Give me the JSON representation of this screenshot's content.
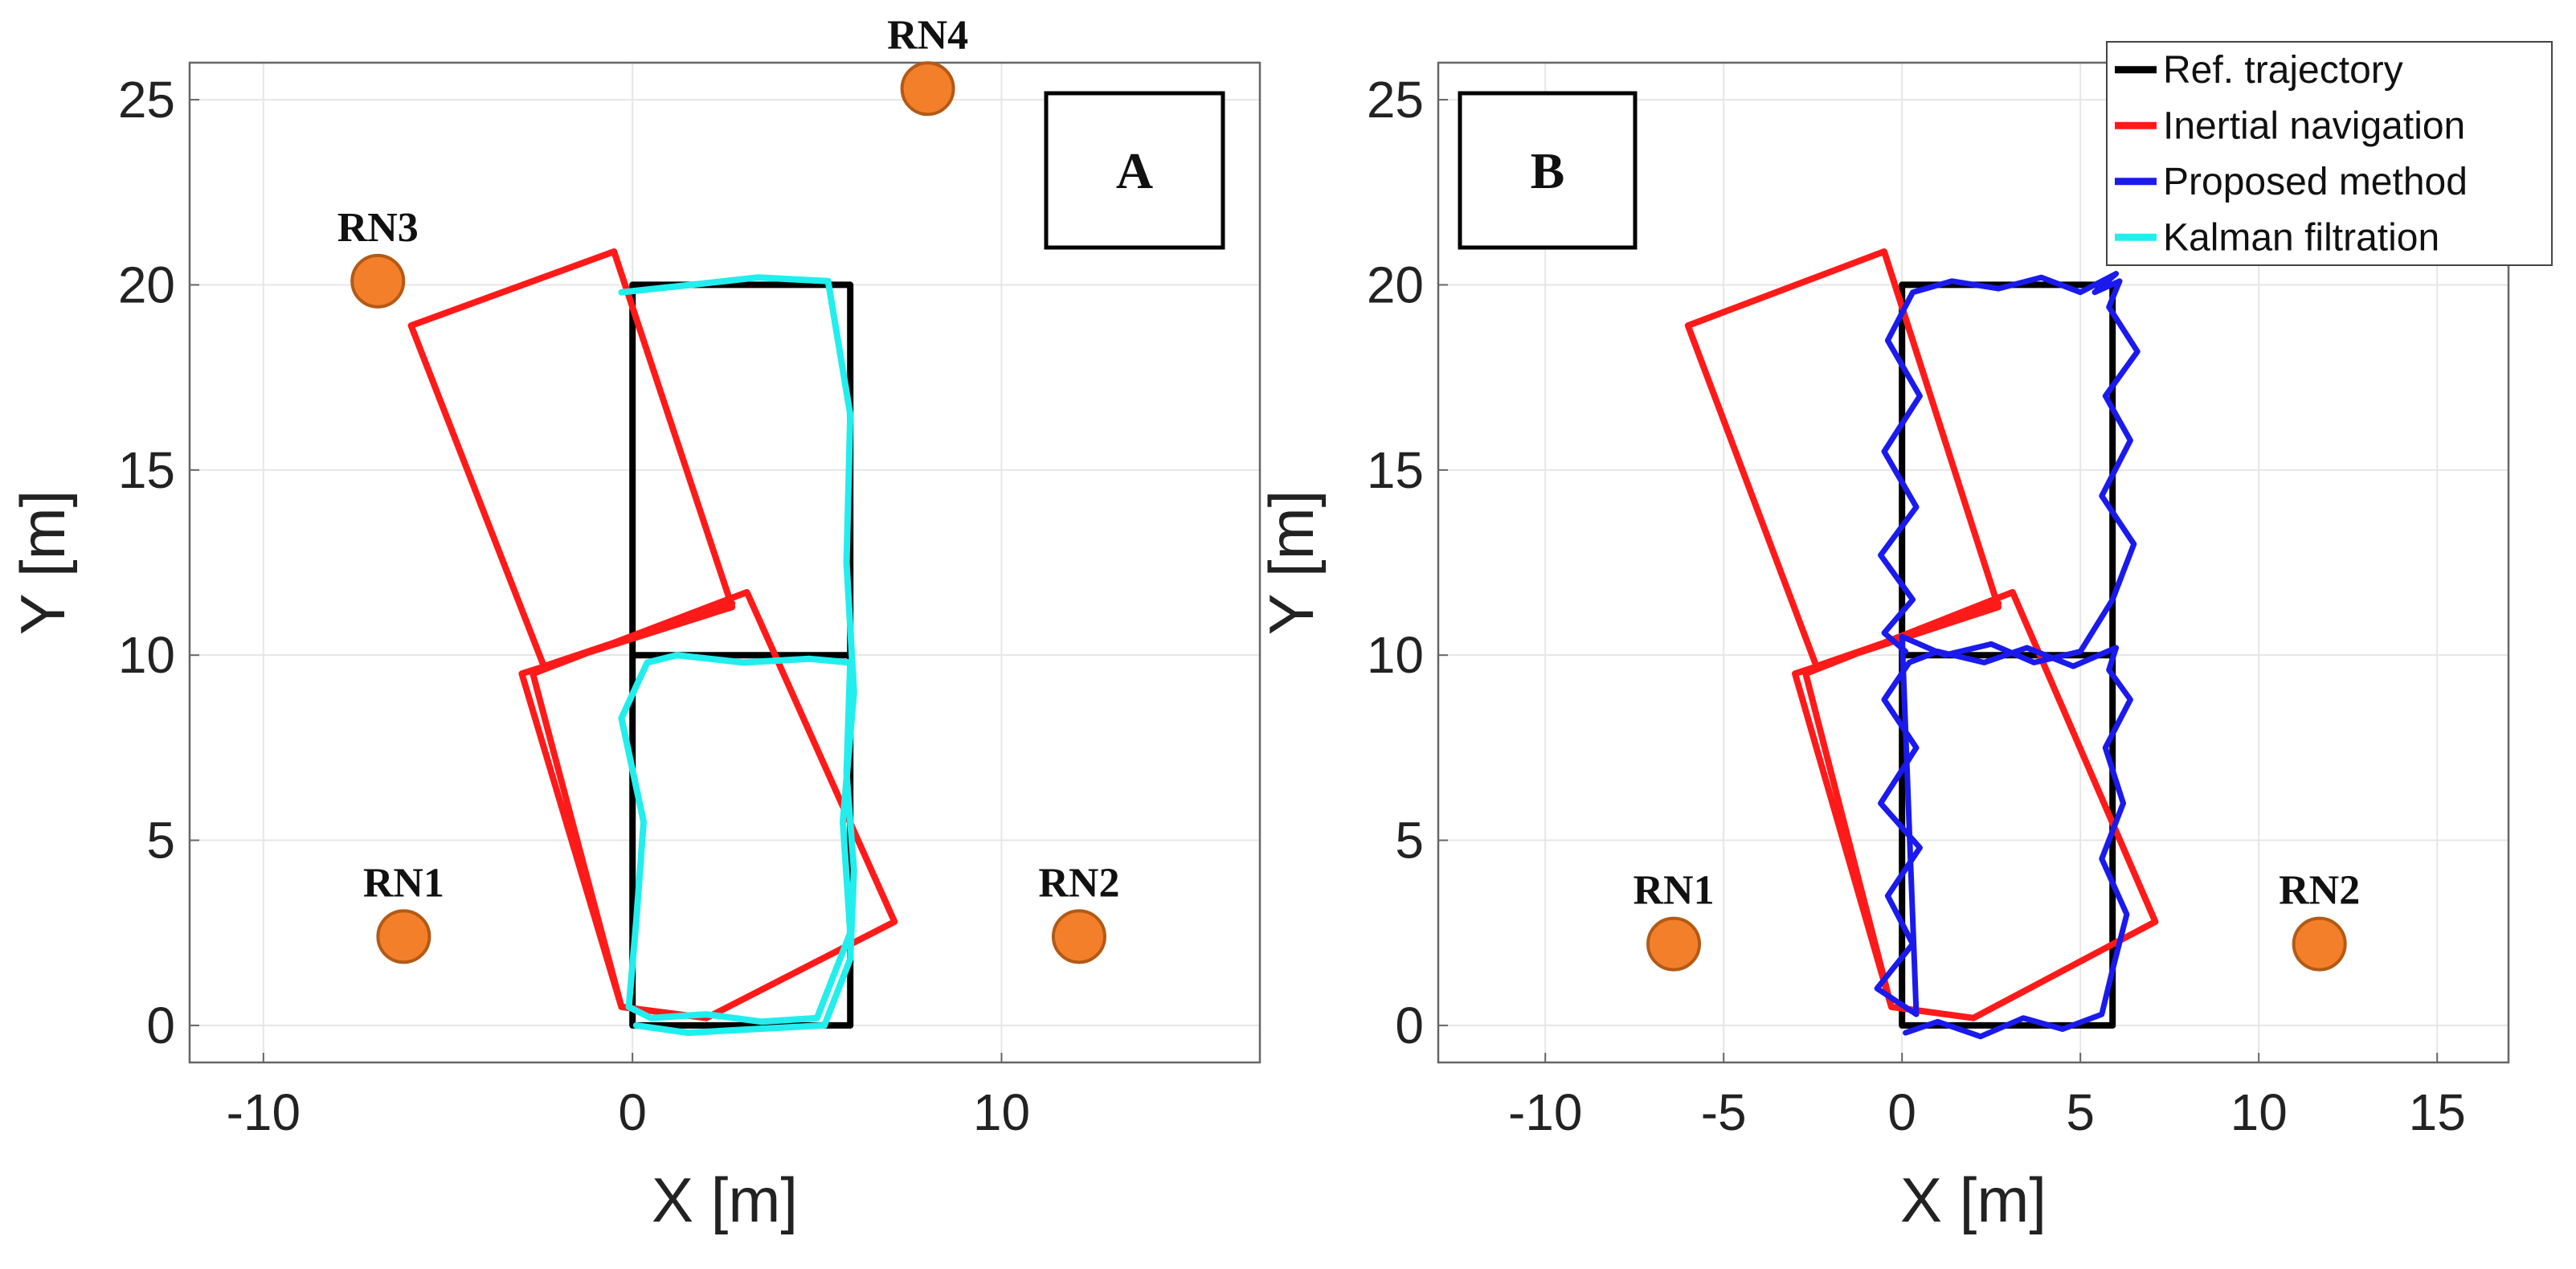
{
  "chart_data": [
    {
      "type": "line",
      "panel_label": "A",
      "xlabel": "X [m]",
      "ylabel": "Y [m]",
      "xlim": [
        -12,
        17
      ],
      "ylim": [
        -1,
        26
      ],
      "xticks": [
        -10,
        0,
        10
      ],
      "xtick_labels": [
        "-10",
        "0",
        "10"
      ],
      "yticks": [
        0,
        5,
        10,
        15,
        20,
        25
      ],
      "ytick_labels": [
        "0",
        "5",
        "10",
        "15",
        "20",
        "25"
      ],
      "grid": true,
      "series": [
        {
          "name": "Ref. trajectory",
          "color": "#000000",
          "x": [
            0,
            5.9,
            5.9,
            0,
            0,
            5.9,
            5.9,
            0,
            0
          ],
          "y": [
            0,
            0,
            20,
            20,
            10,
            10,
            0,
            0,
            20
          ]
        },
        {
          "name": "Inertial navigation",
          "color": "#ff1a1a",
          "x": [
            -0.3,
            -2.7,
            3.1,
            7.1,
            2.0,
            -0.3,
            -3.0,
            2.7,
            -0.5,
            -6.0,
            -2.4,
            2.7
          ],
          "y": [
            0.5,
            9.5,
            11.7,
            2.8,
            0.2,
            0.5,
            9.5,
            11.3,
            20.9,
            18.9,
            9.7,
            11.4
          ]
        },
        {
          "name": "Kalman filtration",
          "color": "#22eeee",
          "x": [
            0.1,
            1.5,
            3.3,
            5.2,
            5.9,
            6.0,
            5.8,
            5.9,
            4.8,
            3.0,
            1.2,
            0.4,
            -0.3,
            0.3,
            0.1,
            -0.1,
            0.5,
            2.0,
            3.5,
            5.0,
            5.9,
            5.7,
            6.0,
            5.8,
            5.9,
            5.3,
            3.4,
            1.6,
            -0.3
          ],
          "y": [
            0.0,
            -0.2,
            -0.1,
            0.0,
            1.8,
            4.2,
            6.8,
            9.8,
            9.9,
            9.8,
            10.0,
            9.8,
            8.3,
            5.5,
            2.8,
            0.5,
            0.2,
            0.3,
            0.1,
            0.2,
            2.5,
            5.5,
            9.0,
            12.5,
            16.5,
            20.1,
            20.2,
            20.0,
            19.8
          ]
        }
      ],
      "markers": [
        {
          "label": "RN1",
          "x": -6.2,
          "y": 2.4
        },
        {
          "label": "RN2",
          "x": 12.1,
          "y": 2.4
        },
        {
          "label": "RN3",
          "x": -6.9,
          "y": 20.1
        },
        {
          "label": "RN4",
          "x": 8.0,
          "y": 25.3
        }
      ],
      "legend": "none"
    },
    {
      "type": "line",
      "panel_label": "B",
      "xlabel": "X [m]",
      "ylabel": "Y [m]",
      "xlim": [
        -13,
        17
      ],
      "ylim": [
        -1,
        26
      ],
      "xticks": [
        -10,
        -5,
        0,
        5,
        10,
        15
      ],
      "xtick_labels": [
        "-10",
        "-5",
        "0",
        "5",
        "10",
        "15"
      ],
      "yticks": [
        0,
        5,
        10,
        15,
        20,
        25
      ],
      "ytick_labels": [
        "0",
        "5",
        "10",
        "15",
        "20",
        "25"
      ],
      "grid": true,
      "series": [
        {
          "name": "Ref. trajectory",
          "color": "#000000",
          "x": [
            0,
            5.9,
            5.9,
            0,
            0,
            5.9,
            5.9,
            0,
            0
          ],
          "y": [
            0,
            0,
            20,
            20,
            10,
            10,
            0,
            0,
            20
          ]
        },
        {
          "name": "Inertial navigation",
          "color": "#ff1a1a",
          "x": [
            -0.3,
            -2.7,
            3.1,
            7.1,
            2.0,
            -0.3,
            -3.0,
            2.7,
            -0.5,
            -6.0,
            -2.4,
            2.7
          ],
          "y": [
            0.5,
            9.5,
            11.7,
            2.8,
            0.2,
            0.5,
            9.5,
            11.3,
            20.9,
            18.9,
            9.7,
            11.4
          ]
        },
        {
          "name": "Proposed method",
          "color": "#1a1aee",
          "x": [
            0.1,
            1.0,
            2.2,
            3.4,
            4.5,
            5.6,
            5.9,
            6.3,
            5.6,
            6.2,
            5.7,
            6.4,
            5.8,
            6.0,
            4.8,
            3.5,
            2.3,
            1.0,
            0.2,
            -0.5,
            0.4,
            -0.6,
            0.5,
            -0.4,
            0.3,
            -0.7,
            0.4,
            0.0,
            1.2,
            2.5,
            3.7,
            5.0,
            5.9,
            6.5,
            5.6,
            6.4,
            5.7,
            6.6,
            5.8,
            6.1,
            5.4,
            6.0,
            5.0,
            3.9,
            2.7,
            1.4,
            0.3,
            -0.4,
            0.5,
            -0.5,
            0.4,
            -0.6,
            0.3,
            -0.5,
            0.1
          ],
          "y": [
            -0.2,
            0.1,
            -0.3,
            0.2,
            -0.1,
            0.3,
            1.5,
            3.0,
            4.5,
            6.0,
            7.5,
            8.8,
            9.6,
            10.2,
            9.7,
            10.2,
            9.8,
            10.1,
            9.8,
            8.8,
            7.5,
            6.0,
            4.8,
            3.5,
            2.2,
            1.0,
            0.3,
            10.5,
            10.0,
            10.3,
            9.8,
            10.1,
            11.5,
            13.0,
            14.3,
            15.8,
            17.0,
            18.2,
            19.4,
            20.1,
            19.8,
            20.3,
            19.8,
            20.2,
            19.9,
            20.1,
            19.8,
            18.5,
            17.0,
            15.5,
            14.0,
            12.7,
            11.5,
            10.6,
            10.1
          ]
        }
      ],
      "markers": [
        {
          "label": "RN1",
          "x": -6.4,
          "y": 2.2
        },
        {
          "label": "RN2",
          "x": 11.7,
          "y": 2.2
        }
      ],
      "legend": {
        "placement": "top-right",
        "entries": [
          {
            "label": "Ref. trajectory",
            "color": "#000000"
          },
          {
            "label": "Inertial navigation",
            "color": "#ff1a1a"
          },
          {
            "label": "Proposed method",
            "color": "#1a1aee"
          },
          {
            "label": "Kalman filtration",
            "color": "#22eeee"
          }
        ]
      }
    }
  ],
  "style": {
    "marker_fill": "#f47f2a",
    "marker_stroke": "#b35a15",
    "grid_color": "#e6e6e6",
    "axis_color": "#666666"
  }
}
